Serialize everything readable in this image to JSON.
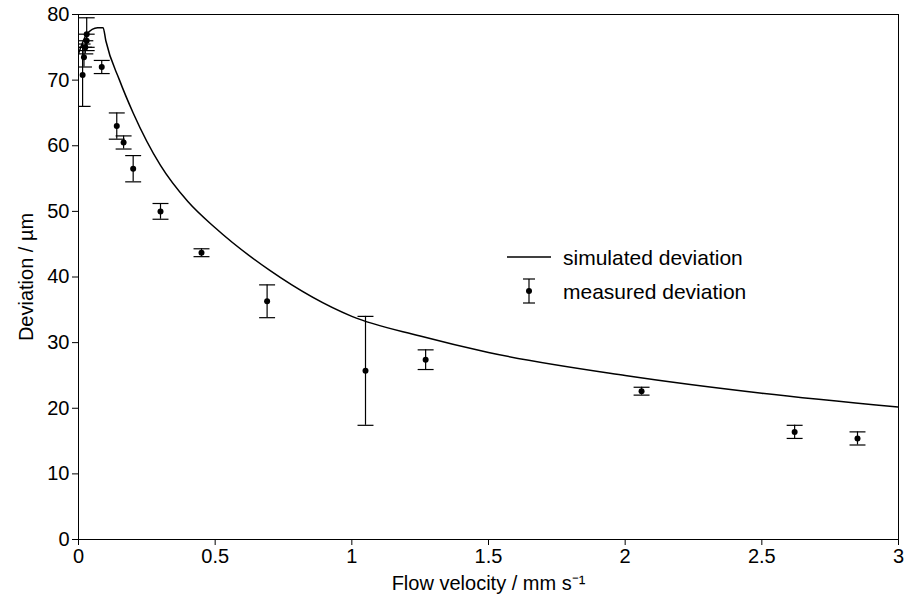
{
  "chart_data": {
    "type": "scatter",
    "x_label": "Flow velocity / mm s⁻¹",
    "y_label": "Deviation / µm",
    "xlim": [
      0,
      3
    ],
    "xticks": [
      0,
      0.5,
      1,
      1.5,
      2,
      2.5,
      3
    ],
    "ylim": [
      0,
      80
    ],
    "yticks": [
      0,
      10,
      20,
      30,
      40,
      50,
      60,
      70,
      80
    ],
    "grid": false,
    "legend": "right",
    "series": [
      {
        "name": "simulated deviation",
        "type": "line",
        "color": "#000000",
        "line_style": "solid",
        "x": [
          0,
          0.03,
          0.07,
          0.09,
          0.1,
          0.15,
          0.2,
          0.3,
          0.4,
          0.5,
          0.7,
          1.0,
          1.25,
          1.5,
          2.0,
          2.5,
          3.0
        ],
        "values": [
          74,
          77,
          78,
          78,
          76,
          70,
          65,
          57,
          51.5,
          47.5,
          41,
          34,
          31,
          28.5,
          25,
          22.3,
          20.2
        ]
      },
      {
        "name": "measured deviation",
        "type": "scatter",
        "marker": "circle",
        "color": "#000000",
        "x": [
          0.015,
          0.02,
          0.025,
          0.03,
          0.03,
          0.085,
          0.14,
          0.165,
          0.2,
          0.3,
          0.45,
          0.69,
          1.05,
          1.27,
          2.06,
          2.62,
          2.85
        ],
        "values": [
          70.8,
          73.5,
          75,
          76,
          77,
          72,
          63,
          60.5,
          56.5,
          50,
          43.7,
          36.3,
          25.7,
          27.4,
          22.6,
          16.4,
          15.4
        ],
        "y_low": [
          66,
          72,
          74,
          75,
          74.5,
          71,
          61,
          59.5,
          54.5,
          48.8,
          43.1,
          33.8,
          17.4,
          25.9,
          22,
          15.4,
          14.4
        ],
        "y_high": [
          75.5,
          75,
          76,
          77,
          79.5,
          73,
          65,
          61.5,
          58.5,
          51.2,
          44.3,
          38.8,
          34,
          28.9,
          23.2,
          17.4,
          16.4
        ]
      }
    ]
  }
}
